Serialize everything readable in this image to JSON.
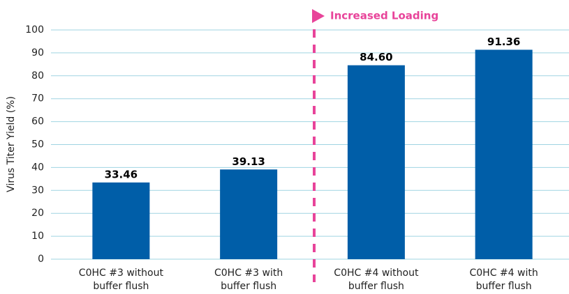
{
  "chart_data": {
    "type": "bar",
    "categories": [
      "C0HC #3 without buffer flush",
      "C0HC #3 with buffer flush",
      "C0HC #4 without buffer flush",
      "C0HC #4 with buffer flush"
    ],
    "values": [
      33.46,
      39.13,
      84.6,
      91.36
    ],
    "value_labels": [
      "33.46",
      "39.13",
      "84.60",
      "91.36"
    ],
    "color": "#005ea8",
    "y_label": "Virus Titer Yield (%)",
    "annotation": "Increased Loading",
    "ylim": [
      0,
      100
    ],
    "yticks": [
      0,
      10,
      20,
      30,
      40,
      50,
      60,
      70,
      80,
      90,
      100
    ],
    "grid": true
  }
}
